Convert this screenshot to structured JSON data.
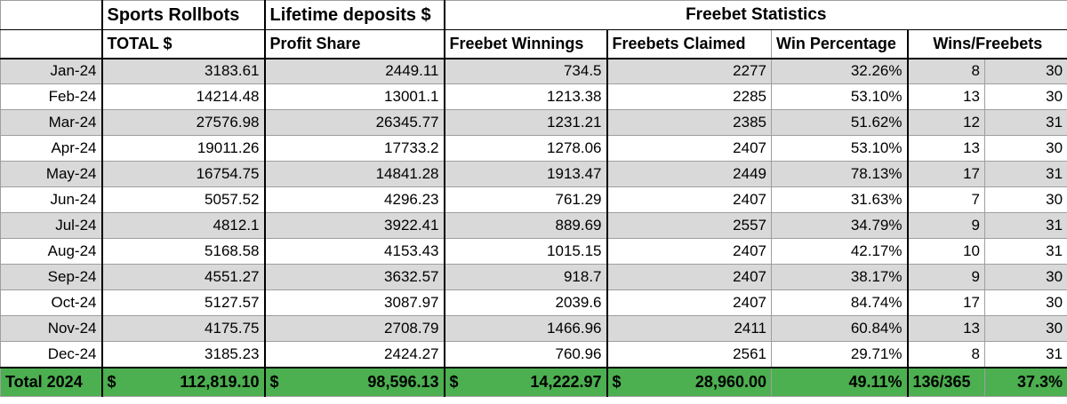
{
  "header": {
    "col1_title": "Sports Rollbots",
    "col2_title": "Lifetime deposits $",
    "group_title": "Freebet Statistics",
    "sub": [
      "",
      "TOTAL $",
      "Profit Share",
      "Freebet Winnings",
      "Freebets Claimed",
      "Win Percentage",
      "Wins/Freebets"
    ]
  },
  "rows": [
    {
      "month": "Jan-24",
      "total": "3183.61",
      "profit": "2449.11",
      "winnings": "734.5",
      "claimed": "2277",
      "pct": "32.26%",
      "wins": "8",
      "freebets": "30"
    },
    {
      "month": "Feb-24",
      "total": "14214.48",
      "profit": "13001.1",
      "winnings": "1213.38",
      "claimed": "2285",
      "pct": "53.10%",
      "wins": "13",
      "freebets": "30"
    },
    {
      "month": "Mar-24",
      "total": "27576.98",
      "profit": "26345.77",
      "winnings": "1231.21",
      "claimed": "2385",
      "pct": "51.62%",
      "wins": "12",
      "freebets": "31"
    },
    {
      "month": "Apr-24",
      "total": "19011.26",
      "profit": "17733.2",
      "winnings": "1278.06",
      "claimed": "2407",
      "pct": "53.10%",
      "wins": "13",
      "freebets": "30"
    },
    {
      "month": "May-24",
      "total": "16754.75",
      "profit": "14841.28",
      "winnings": "1913.47",
      "claimed": "2449",
      "pct": "78.13%",
      "wins": "17",
      "freebets": "31"
    },
    {
      "month": "Jun-24",
      "total": "5057.52",
      "profit": "4296.23",
      "winnings": "761.29",
      "claimed": "2407",
      "pct": "31.63%",
      "wins": "7",
      "freebets": "30"
    },
    {
      "month": "Jul-24",
      "total": "4812.1",
      "profit": "3922.41",
      "winnings": "889.69",
      "claimed": "2557",
      "pct": "34.79%",
      "wins": "9",
      "freebets": "31"
    },
    {
      "month": "Aug-24",
      "total": "5168.58",
      "profit": "4153.43",
      "winnings": "1015.15",
      "claimed": "2407",
      "pct": "42.17%",
      "wins": "10",
      "freebets": "31"
    },
    {
      "month": "Sep-24",
      "total": "4551.27",
      "profit": "3632.57",
      "winnings": "918.7",
      "claimed": "2407",
      "pct": "38.17%",
      "wins": "9",
      "freebets": "30"
    },
    {
      "month": "Oct-24",
      "total": "5127.57",
      "profit": "3087.97",
      "winnings": "2039.6",
      "claimed": "2407",
      "pct": "84.74%",
      "wins": "17",
      "freebets": "30"
    },
    {
      "month": "Nov-24",
      "total": "4175.75",
      "profit": "2708.79",
      "winnings": "1466.96",
      "claimed": "2411",
      "pct": "60.84%",
      "wins": "13",
      "freebets": "30"
    },
    {
      "month": "Dec-24",
      "total": "3185.23",
      "profit": "2424.27",
      "winnings": "760.96",
      "claimed": "2561",
      "pct": "29.71%",
      "wins": "8",
      "freebets": "31"
    }
  ],
  "total": {
    "label": "Total 2024",
    "currency": "$",
    "total": "112,819.10",
    "profit": "98,596.13",
    "winnings": "14,222.97",
    "claimed": "28,960.00",
    "pct": "49.11%",
    "wins_ratio": "136/365",
    "wins_pct": "37.3%"
  },
  "colors": {
    "shade": "#d9d9d9",
    "total_bg": "#4caf50"
  }
}
